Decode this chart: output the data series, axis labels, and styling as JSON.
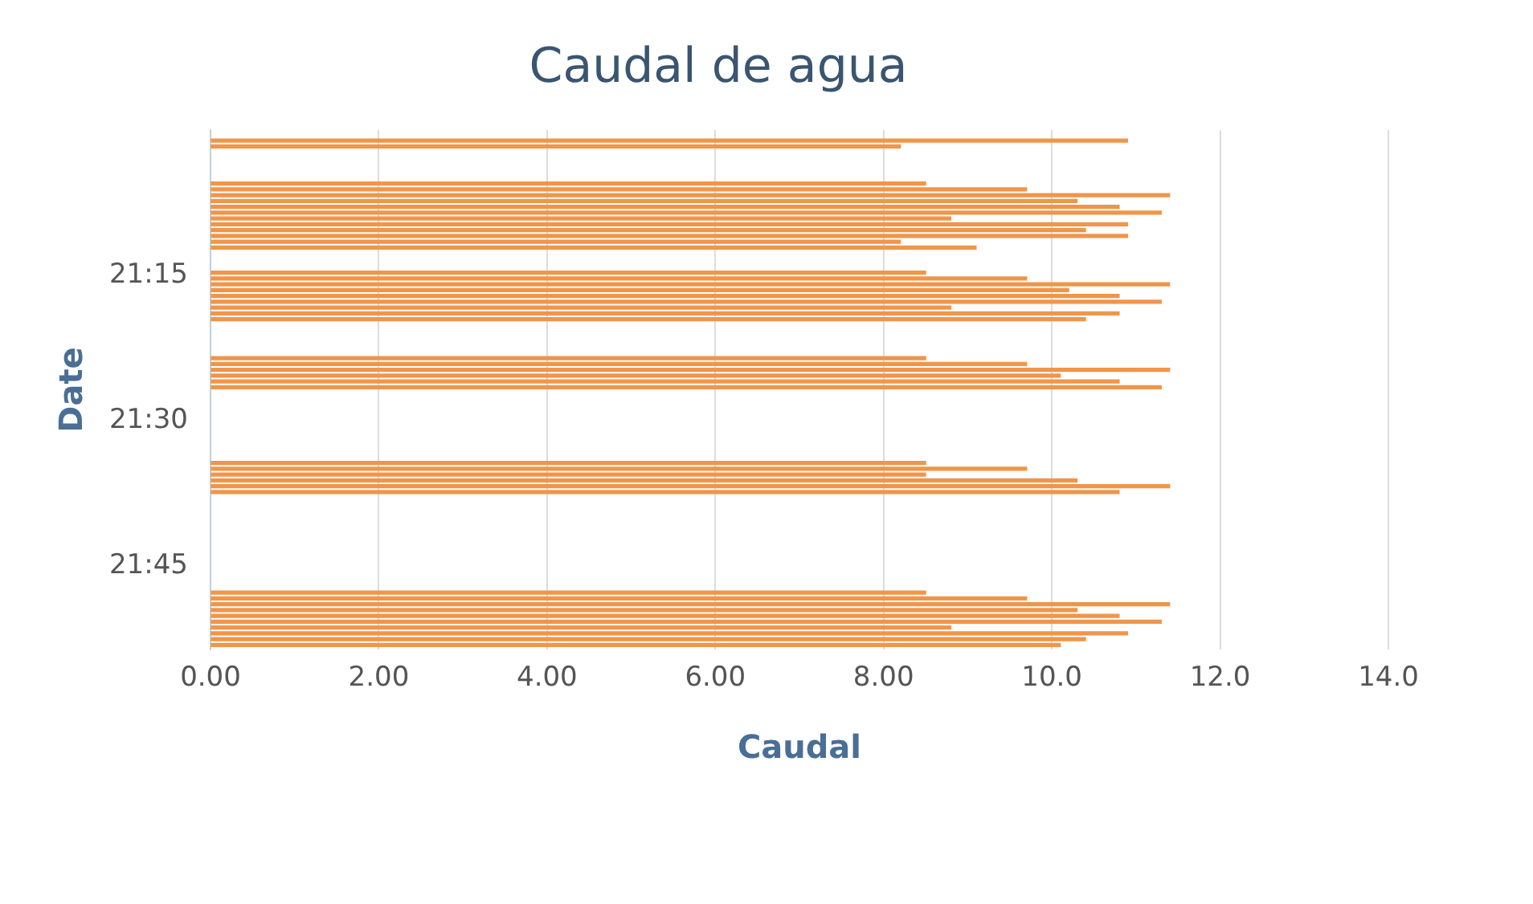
{
  "chart_data": {
    "type": "bar",
    "orientation": "horizontal",
    "title": "Caudal de agua",
    "xlabel": "Caudal",
    "ylabel": "Date",
    "x": [
      21.018,
      21.028,
      21.092,
      21.102,
      21.112,
      21.122,
      21.132,
      21.142,
      21.152,
      21.162,
      21.172,
      21.182,
      21.192,
      21.202,
      21.245,
      21.255,
      21.265,
      21.275,
      21.285,
      21.295,
      21.305,
      21.315,
      21.325,
      21.392,
      21.402,
      21.412,
      21.422,
      21.432,
      21.442,
      21.572,
      21.582,
      21.592,
      21.602,
      21.612,
      21.622,
      21.795,
      21.805,
      21.815,
      21.825,
      21.835,
      21.845,
      21.855,
      21.865,
      21.875,
      21.885
    ],
    "values": [
      10.9,
      8.2,
      8.5,
      9.7,
      11.4,
      10.3,
      10.8,
      11.3,
      8.8,
      10.9,
      10.4,
      10.9,
      8.2,
      9.1,
      8.5,
      9.7,
      11.4,
      10.2,
      10.8,
      11.3,
      8.8,
      10.8,
      10.4,
      8.5,
      9.7,
      11.4,
      10.1,
      10.8,
      11.3,
      8.5,
      9.7,
      8.5,
      10.3,
      11.4,
      10.8,
      8.5,
      9.7,
      11.4,
      10.3,
      10.8,
      11.3,
      8.8,
      10.9,
      10.4,
      10.1
    ],
    "color": "#f0954a",
    "xlim": [
      0,
      14
    ],
    "xticks": [
      {
        "value": 0,
        "label": "0.00"
      },
      {
        "value": 2,
        "label": "2.00"
      },
      {
        "value": 4,
        "label": "4.00"
      },
      {
        "value": 6,
        "label": "6.00"
      },
      {
        "value": 8,
        "label": "8.00"
      },
      {
        "value": 10,
        "label": "10.0"
      },
      {
        "value": 12,
        "label": "12.0"
      },
      {
        "value": 14,
        "label": "14.0"
      }
    ],
    "ylim": [
      21.893,
      21.0
    ],
    "yticks": [
      {
        "value": 21.25,
        "label": "21:15"
      },
      {
        "value": 21.5,
        "label": "21:30"
      },
      {
        "value": 21.75,
        "label": "21:45"
      }
    ],
    "grid": "x",
    "legend": false
  }
}
